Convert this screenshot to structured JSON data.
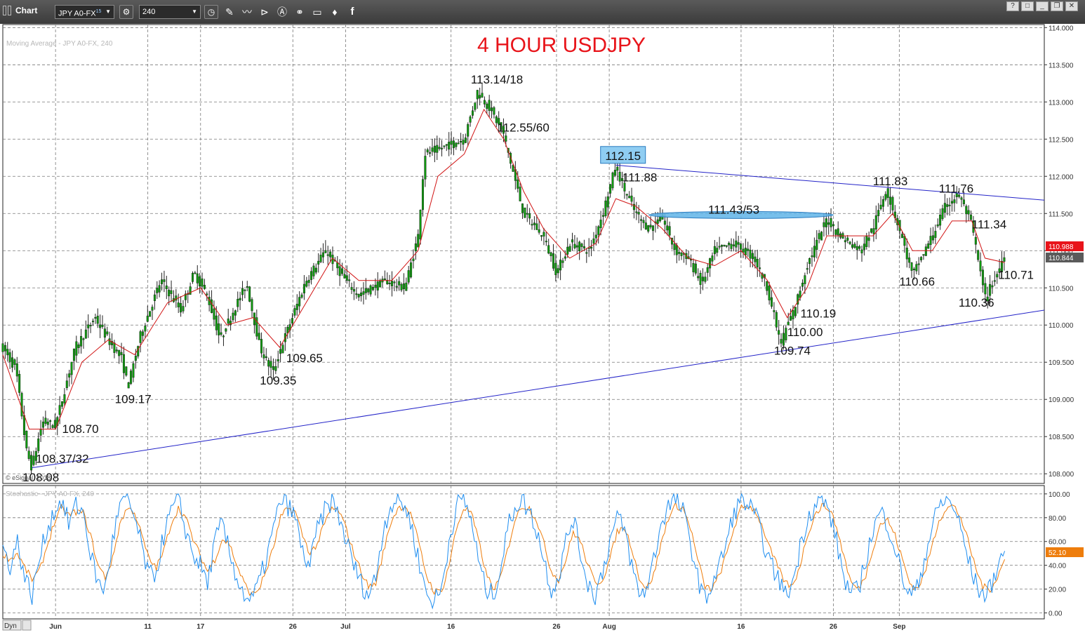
{
  "window": {
    "title": "Chart",
    "symbol": "JPY A0-FX",
    "symbol_sup": "15",
    "interval": "240",
    "window_buttons": [
      "?",
      "□",
      "_",
      "❐",
      "✕"
    ]
  },
  "main_panel": {
    "study_label": "Moving Average - JPY A0-FX, 240",
    "copyright": "© eSignal, 2018",
    "chart_title": "4 HOUR USDJPY",
    "last_price": "110.988",
    "ma_price": "110.844"
  },
  "sub_panel": {
    "study_label": "Stochastic - JPY A0-FX, 240",
    "last_value": "52.10",
    "dyn_label": "Dyn"
  },
  "colors": {
    "title": "#e8141a",
    "candle": "#0f9a0f",
    "ma": "#d11414",
    "trendline": "#2323c8",
    "highlight_fill": "#5fb4e8",
    "stoch_k": "#1f8ef0",
    "stoch_d": "#ee7d0c",
    "price_badge": "#e8141a",
    "ma_badge": "#5a5a5a",
    "stoch_badge": "#ee7d0c"
  },
  "chart_data": [
    {
      "type": "candlestick",
      "title": "4 HOUR USDJPY",
      "ylim": [
        107.87,
        114.05
      ],
      "yticks": [
        114.0,
        113.5,
        113.0,
        112.5,
        112.0,
        111.5,
        111.0,
        110.5,
        110.0,
        109.5,
        109.0,
        108.5,
        108.0
      ],
      "ytick_labels": [
        "114.000",
        "113.500",
        "113.000",
        "112.500",
        "112.000",
        "111.500",
        "111.000",
        "110.500",
        "110.000",
        "109.500",
        "109.000",
        "108.500",
        "108.000"
      ],
      "x_categories": [
        "Jun",
        "11",
        "17",
        "26",
        "Jul",
        "16",
        "26",
        "Aug",
        "16",
        "26",
        "Sep"
      ],
      "x_tick_positions": [
        40,
        110,
        150,
        220,
        260,
        340,
        420,
        460,
        560,
        630,
        680
      ],
      "xlim": [
        0,
        790
      ],
      "grid": true,
      "price_path": [
        [
          0,
          109.7
        ],
        [
          10,
          109.4
        ],
        [
          18,
          108.3
        ],
        [
          22,
          108.08
        ],
        [
          30,
          108.7
        ],
        [
          40,
          108.65
        ],
        [
          55,
          109.7
        ],
        [
          70,
          110.1
        ],
        [
          80,
          109.8
        ],
        [
          90,
          109.55
        ],
        [
          95,
          109.17
        ],
        [
          105,
          109.9
        ],
        [
          120,
          110.6
        ],
        [
          135,
          110.2
        ],
        [
          145,
          110.7
        ],
        [
          155,
          110.4
        ],
        [
          165,
          109.8
        ],
        [
          175,
          110.2
        ],
        [
          185,
          110.55
        ],
        [
          195,
          109.7
        ],
        [
          205,
          109.35
        ],
        [
          210,
          109.65
        ],
        [
          230,
          110.6
        ],
        [
          245,
          111.0
        ],
        [
          260,
          110.6
        ],
        [
          270,
          110.4
        ],
        [
          290,
          110.6
        ],
        [
          305,
          110.5
        ],
        [
          315,
          111.2
        ],
        [
          320,
          112.3
        ],
        [
          335,
          112.4
        ],
        [
          350,
          112.5
        ],
        [
          360,
          113.14
        ],
        [
          370,
          112.9
        ],
        [
          380,
          112.55
        ],
        [
          395,
          111.5
        ],
        [
          410,
          111.2
        ],
        [
          420,
          110.7
        ],
        [
          430,
          111.1
        ],
        [
          445,
          111.0
        ],
        [
          455,
          111.5
        ],
        [
          465,
          112.15
        ],
        [
          470,
          111.88
        ],
        [
          480,
          111.5
        ],
        [
          490,
          111.3
        ],
        [
          500,
          111.45
        ],
        [
          510,
          111.0
        ],
        [
          520,
          110.9
        ],
        [
          530,
          110.55
        ],
        [
          540,
          111.0
        ],
        [
          555,
          111.1
        ],
        [
          570,
          110.9
        ],
        [
          580,
          110.5
        ],
        [
          590,
          109.74
        ],
        [
          595,
          110.0
        ],
        [
          600,
          110.19
        ],
        [
          610,
          110.8
        ],
        [
          625,
          111.43
        ],
        [
          635,
          111.2
        ],
        [
          650,
          111.0
        ],
        [
          660,
          111.3
        ],
        [
          670,
          111.83
        ],
        [
          680,
          111.3
        ],
        [
          690,
          110.66
        ],
        [
          705,
          111.2
        ],
        [
          715,
          111.6
        ],
        [
          725,
          111.76
        ],
        [
          735,
          111.34
        ],
        [
          745,
          110.36
        ],
        [
          755,
          110.71
        ],
        [
          760,
          110.98
        ]
      ],
      "ma_path": [
        [
          0,
          109.6
        ],
        [
          20,
          108.6
        ],
        [
          40,
          108.6
        ],
        [
          60,
          109.5
        ],
        [
          80,
          109.8
        ],
        [
          100,
          109.6
        ],
        [
          125,
          110.3
        ],
        [
          150,
          110.5
        ],
        [
          170,
          110.0
        ],
        [
          190,
          110.1
        ],
        [
          210,
          109.7
        ],
        [
          230,
          110.3
        ],
        [
          250,
          110.9
        ],
        [
          270,
          110.6
        ],
        [
          295,
          110.6
        ],
        [
          315,
          111.0
        ],
        [
          330,
          112.0
        ],
        [
          350,
          112.3
        ],
        [
          365,
          112.9
        ],
        [
          380,
          112.5
        ],
        [
          395,
          111.8
        ],
        [
          410,
          111.3
        ],
        [
          430,
          110.9
        ],
        [
          450,
          111.1
        ],
        [
          465,
          111.7
        ],
        [
          480,
          111.6
        ],
        [
          500,
          111.3
        ],
        [
          520,
          110.9
        ],
        [
          540,
          110.8
        ],
        [
          560,
          111.0
        ],
        [
          580,
          110.6
        ],
        [
          595,
          110.1
        ],
        [
          610,
          110.5
        ],
        [
          625,
          111.2
        ],
        [
          640,
          111.2
        ],
        [
          660,
          111.2
        ],
        [
          675,
          111.5
        ],
        [
          690,
          111.0
        ],
        [
          705,
          111.0
        ],
        [
          720,
          111.4
        ],
        [
          735,
          111.4
        ],
        [
          745,
          110.9
        ],
        [
          760,
          110.84
        ]
      ],
      "trendlines": [
        {
          "from": [
            22,
            108.08
          ],
          "to": [
            790,
            110.2
          ]
        },
        {
          "from": [
            465,
            112.15
          ],
          "to": [
            790,
            111.68
          ]
        }
      ],
      "highlight_zone": {
        "x_start": 490,
        "x_end": 630,
        "y": 111.48
      },
      "highlight_box": {
        "label": "112.15",
        "x": 455,
        "y": 112.25
      },
      "annotations": [
        {
          "text": "113.14/18",
          "x": 355,
          "y": 113.25
        },
        {
          "text": "112.55/60",
          "x": 375,
          "y": 112.6
        },
        {
          "text": "111.88",
          "x": 470,
          "y": 111.93
        },
        {
          "text": "111.43/53",
          "x": 535,
          "y": 111.5
        },
        {
          "text": "111.83",
          "x": 660,
          "y": 111.88
        },
        {
          "text": "111.76",
          "x": 710,
          "y": 111.78
        },
        {
          "text": "111.34",
          "x": 735,
          "y": 111.3
        },
        {
          "text": "110.71",
          "x": 755,
          "y": 110.62
        },
        {
          "text": "110.66",
          "x": 680,
          "y": 110.53
        },
        {
          "text": "110.36",
          "x": 725,
          "y": 110.25
        },
        {
          "text": "110.19",
          "x": 605,
          "y": 110.1
        },
        {
          "text": "110.00",
          "x": 595,
          "y": 109.85
        },
        {
          "text": "109.74",
          "x": 585,
          "y": 109.6
        },
        {
          "text": "109.65",
          "x": 215,
          "y": 109.5
        },
        {
          "text": "109.35",
          "x": 195,
          "y": 109.2
        },
        {
          "text": "109.17",
          "x": 85,
          "y": 108.95
        },
        {
          "text": "108.70",
          "x": 45,
          "y": 108.55
        },
        {
          "text": "108.37/32",
          "x": 25,
          "y": 108.15
        },
        {
          "text": "108.08",
          "x": 15,
          "y": 107.9
        }
      ]
    },
    {
      "type": "line",
      "title": "Stochastic - JPY A0-FX, 240",
      "ylim": [
        -5,
        107
      ],
      "yticks": [
        100,
        80,
        60,
        40,
        20,
        0
      ],
      "ytick_labels": [
        "100.00",
        "80.00",
        "60.00",
        "40.00",
        "20.00",
        "0.00"
      ],
      "series": [
        {
          "name": "%K",
          "values": [
            55,
            40,
            60,
            30,
            15,
            45,
            70,
            85,
            95,
            75,
            90,
            85,
            50,
            25,
            20,
            60,
            90,
            95,
            80,
            55,
            30,
            35,
            65,
            85,
            95,
            70,
            50,
            40,
            25,
            60,
            75,
            50,
            30,
            15,
            10,
            25,
            45,
            70,
            95,
            90,
            80,
            50,
            40,
            70,
            85,
            95,
            80,
            60,
            40,
            25,
            15,
            30,
            70,
            90,
            95,
            90,
            70,
            40,
            15,
            10,
            20,
            60,
            90,
            95,
            80,
            45,
            20,
            15,
            35,
            70,
            90,
            95,
            85,
            70,
            45,
            20,
            30,
            60,
            80,
            50,
            25,
            15,
            35,
            60,
            80,
            70,
            40,
            15,
            20,
            45,
            75,
            90,
            95,
            85,
            60,
            30,
            10,
            25,
            40,
            60,
            85,
            95,
            90,
            80,
            60,
            40,
            30,
            15,
            25,
            55,
            80,
            90,
            95,
            85,
            60,
            30,
            15,
            20,
            45,
            70,
            85,
            75,
            55,
            30,
            15,
            20,
            45,
            70,
            90,
            95,
            90,
            70,
            45,
            25,
            15,
            20,
            40,
            52
          ]
        },
        {
          "name": "%D",
          "values": [
            50,
            45,
            50,
            38,
            28,
            35,
            55,
            75,
            88,
            82,
            85,
            84,
            65,
            40,
            30,
            45,
            75,
            88,
            85,
            65,
            45,
            38,
            52,
            75,
            88,
            80,
            62,
            48,
            35,
            45,
            62,
            58,
            40,
            25,
            15,
            20,
            35,
            55,
            80,
            88,
            85,
            65,
            50,
            58,
            75,
            88,
            85,
            70,
            50,
            35,
            22,
            25,
            50,
            75,
            88,
            90,
            80,
            55,
            30,
            18,
            18,
            40,
            70,
            88,
            85,
            62,
            35,
            20,
            28,
            52,
            78,
            90,
            88,
            78,
            58,
            35,
            28,
            45,
            68,
            60,
            40,
            25,
            28,
            45,
            68,
            72,
            55,
            30,
            20,
            32,
            58,
            80,
            90,
            88,
            72,
            45,
            22,
            20,
            32,
            50,
            72,
            88,
            90,
            85,
            70,
            52,
            38,
            25,
            22,
            40,
            65,
            82,
            90,
            88,
            72,
            48,
            25,
            20,
            32,
            55,
            75,
            78,
            65,
            45,
            25,
            20,
            32,
            55,
            78,
            88,
            90,
            80,
            60,
            38,
            22,
            20,
            30,
            45
          ]
        }
      ]
    }
  ]
}
